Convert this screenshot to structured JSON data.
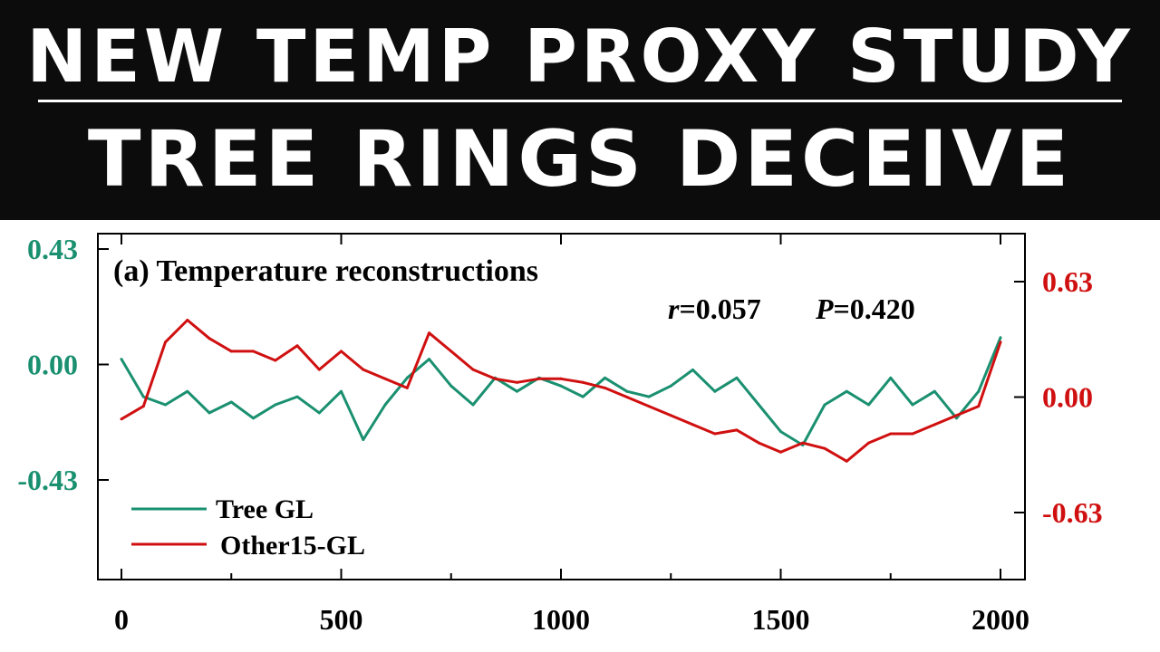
{
  "banner": {
    "line1": "NEW TEMP PROXY STUDY",
    "line2": "TREE RINGS DECEIVE"
  },
  "colors": {
    "banner_bg": "#0c0c0c",
    "banner_text": "#ffffff",
    "tree_series": "#1a9070",
    "other_series": "#d01010"
  },
  "chart_data": {
    "type": "line",
    "panel_title": "(a) Temperature reconstructions",
    "stats": {
      "r_label": "r",
      "r_value": "=0.057",
      "p_label": "P",
      "p_value": "=0.420"
    },
    "x_ticks": [
      "0",
      "500",
      "1000",
      "1500",
      "2000"
    ],
    "xlim": [
      0,
      2000
    ],
    "left_axis": {
      "ticks": [
        "0.43",
        "0.00",
        "-0.43"
      ],
      "ylim": [
        -0.63,
        0.45
      ]
    },
    "right_axis": {
      "ticks": [
        "0.63",
        "0.00",
        "-0.63"
      ],
      "ylim": [
        -1.0,
        0.8
      ]
    },
    "legend_position": "bottom-left",
    "series": [
      {
        "name": "Tree GL",
        "axis": "left",
        "color": "#1a9070",
        "x": [
          0,
          50,
          100,
          150,
          200,
          250,
          300,
          350,
          400,
          450,
          500,
          550,
          600,
          650,
          700,
          750,
          800,
          850,
          900,
          950,
          1000,
          1050,
          1100,
          1150,
          1200,
          1250,
          1300,
          1350,
          1400,
          1450,
          1500,
          1550,
          1600,
          1650,
          1700,
          1750,
          1800,
          1850,
          1900,
          1950,
          2000
        ],
        "y": [
          0.02,
          -0.12,
          -0.15,
          -0.1,
          -0.18,
          -0.14,
          -0.2,
          -0.15,
          -0.12,
          -0.18,
          -0.1,
          -0.28,
          -0.15,
          -0.05,
          0.02,
          -0.08,
          -0.15,
          -0.05,
          -0.1,
          -0.05,
          -0.08,
          -0.12,
          -0.05,
          -0.1,
          -0.12,
          -0.08,
          -0.02,
          -0.1,
          -0.05,
          -0.15,
          -0.25,
          -0.3,
          -0.15,
          -0.1,
          -0.15,
          -0.05,
          -0.15,
          -0.1,
          -0.2,
          -0.1,
          0.1
        ]
      },
      {
        "name": "Other15-GL",
        "axis": "right",
        "color": "#d01010",
        "x": [
          0,
          50,
          100,
          150,
          200,
          250,
          300,
          350,
          400,
          450,
          500,
          550,
          600,
          650,
          700,
          750,
          800,
          850,
          900,
          950,
          1000,
          1050,
          1100,
          1150,
          1200,
          1250,
          1300,
          1350,
          1400,
          1450,
          1500,
          1550,
          1600,
          1650,
          1700,
          1750,
          1800,
          1850,
          1900,
          1950,
          2000
        ],
        "y": [
          -0.12,
          -0.05,
          0.3,
          0.42,
          0.32,
          0.25,
          0.25,
          0.2,
          0.28,
          0.15,
          0.25,
          0.15,
          0.1,
          0.05,
          0.35,
          0.25,
          0.15,
          0.1,
          0.08,
          0.1,
          0.1,
          0.08,
          0.05,
          0.0,
          -0.05,
          -0.1,
          -0.15,
          -0.2,
          -0.18,
          -0.25,
          -0.3,
          -0.25,
          -0.28,
          -0.35,
          -0.25,
          -0.2,
          -0.2,
          -0.15,
          -0.1,
          -0.05,
          0.3
        ]
      }
    ]
  }
}
